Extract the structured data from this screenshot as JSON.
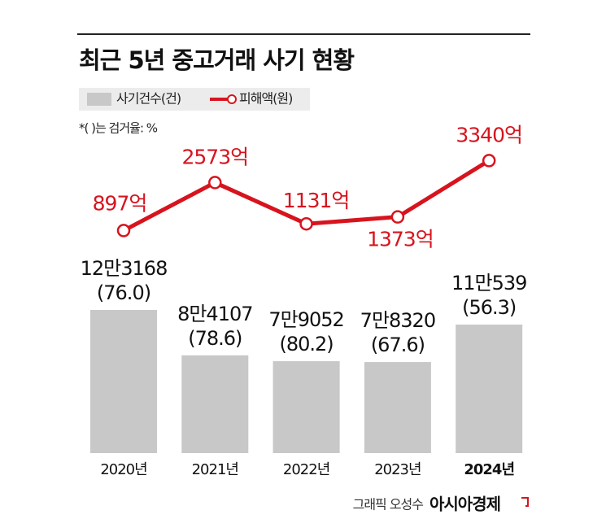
{
  "chart_data": {
    "type": "bar",
    "title": "최근 5년 중고거래 사기 현황",
    "note": "*( )는 검거율: %",
    "categories": [
      "2020년",
      "2021년",
      "2022년",
      "2023년",
      "2024년"
    ],
    "series": [
      {
        "name": "사기건수(건)",
        "type": "bar",
        "color": "#c8c8c8",
        "values": [
          123168,
          84107,
          79052,
          78320,
          110539
        ],
        "value_labels": [
          "12만3168",
          "8만4107",
          "7만9052",
          "7만8320",
          "11만539"
        ],
        "rates": [
          76.0,
          78.6,
          80.2,
          67.6,
          56.3
        ],
        "rate_labels": [
          "(76.0)",
          "(78.6)",
          "(80.2)",
          "(67.6)",
          "(56.3)"
        ]
      },
      {
        "name": "피해액(원)",
        "type": "line",
        "color": "#d7141e",
        "values": [
          897,
          2573,
          1131,
          1373,
          3340
        ],
        "value_labels": [
          "897억",
          "2573억",
          "1131억",
          "1373억",
          "3340억"
        ]
      }
    ],
    "credit": "그래픽 오성수",
    "publisher": "아시아경제"
  }
}
